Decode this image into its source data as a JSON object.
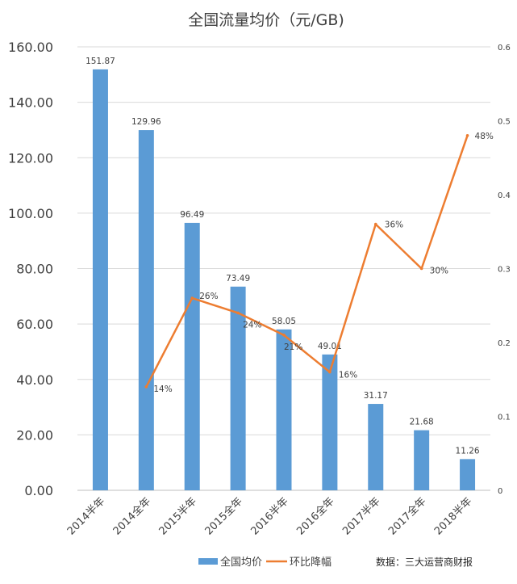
{
  "chart_data": {
    "type": "bar",
    "title": "全国流量均价（元/GB)",
    "categories": [
      "2014半年",
      "2014全年",
      "2015半年",
      "2015全年",
      "2016半年",
      "2016全年",
      "2017半年",
      "2017全年",
      "2018半年"
    ],
    "series": [
      {
        "name": "全国均价",
        "type": "bar",
        "axis": "left",
        "color": "#5B9BD5",
        "values": [
          151.87,
          129.96,
          96.49,
          73.49,
          58.05,
          49.01,
          31.17,
          21.68,
          11.26
        ],
        "labels": [
          "151.87",
          "129.96",
          "96.49",
          "73.49",
          "58.05",
          "49.01",
          "31.17",
          "21.68",
          "11.26"
        ]
      },
      {
        "name": "环比降幅",
        "type": "line",
        "axis": "right",
        "color": "#ED7D31",
        "values": [
          null,
          0.14,
          0.26,
          0.24,
          0.21,
          0.16,
          0.36,
          0.3,
          0.48
        ],
        "labels": [
          null,
          "14%",
          "26%",
          "24%",
          "21%",
          "16%",
          "36%",
          "30%",
          "48%"
        ]
      }
    ],
    "y_left": {
      "min": 0,
      "max": 160,
      "ticks": [
        0,
        20,
        40,
        60,
        80,
        100,
        120,
        140,
        160
      ],
      "tick_labels": [
        "0.00",
        "20.00",
        "40.00",
        "60.00",
        "80.00",
        "100.00",
        "120.00",
        "140.00",
        "160.00"
      ]
    },
    "y_right": {
      "min": 0,
      "max": 0.6,
      "ticks": [
        0,
        0.1,
        0.2,
        0.3,
        0.4,
        0.5,
        0.6
      ],
      "tick_labels": [
        "0",
        "0.1",
        "0.2",
        "0.3",
        "0.4",
        "0.5",
        "0.6"
      ]
    },
    "grid": true,
    "legend_position": "bottom",
    "source_note": "数据：三大运营商财报"
  }
}
